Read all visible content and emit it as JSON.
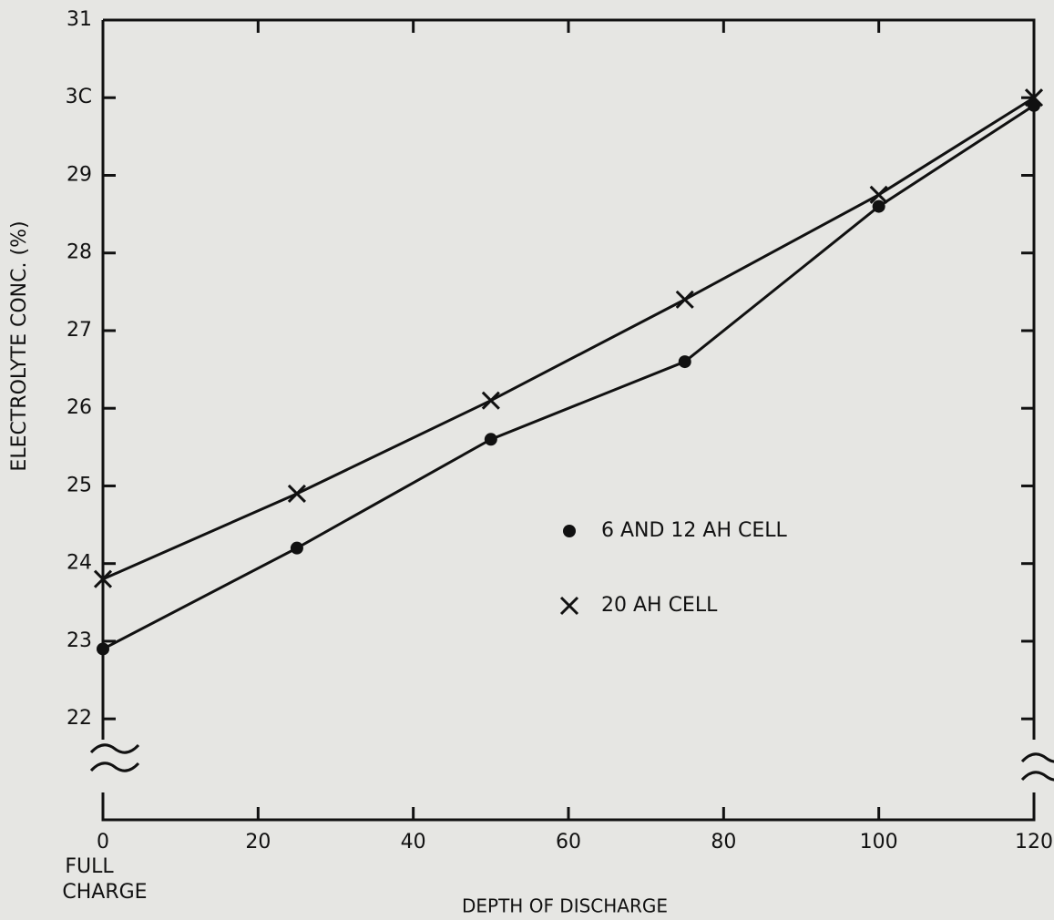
{
  "chart_data": {
    "type": "line",
    "x_label": "DEPTH OF DISCHARGE",
    "y_label": "ELECTROLYTE CONC. (%)",
    "annotations": [
      "FULL",
      "CHARGE"
    ],
    "series": [
      {
        "name": "6 AND 12 AH CELL",
        "marker": "dot",
        "color": "#111111",
        "x": [
          0,
          25,
          50,
          75,
          100,
          120
        ],
        "values": [
          22.9,
          24.2,
          25.6,
          26.6,
          28.6,
          29.9
        ]
      },
      {
        "name": "20 AH CELL",
        "marker": "cross",
        "color": "#111111",
        "x": [
          0,
          25,
          50,
          75,
          100,
          120
        ],
        "values": [
          23.8,
          24.9,
          26.1,
          27.4,
          28.75,
          30.0
        ]
      }
    ],
    "xlim": [
      0,
      120
    ],
    "xticks": [
      0,
      20,
      40,
      60,
      80,
      100,
      120
    ],
    "ylim": [
      20.7,
      31
    ],
    "yticks": [
      22,
      23,
      24,
      25,
      26,
      27,
      28,
      29,
      {
        "value": 30,
        "label": "3C"
      },
      31
    ],
    "grid": false
  }
}
